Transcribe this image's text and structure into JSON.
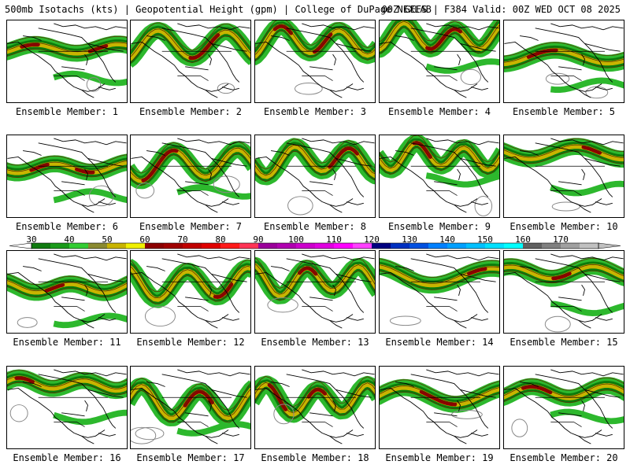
{
  "header": {
    "left": "500mb Isotachs (kts) | Geopotential Height (gpm) | College of DuPage NEXLAB",
    "right": "00Z GEFS | F384 Valid: 00Z WED OCT 08 2025"
  },
  "colorbar": {
    "labels": [
      "30",
      "40",
      "50",
      "60",
      "70",
      "80",
      "90",
      "100",
      "110",
      "120",
      "130",
      "140",
      "150",
      "160",
      "170"
    ],
    "colors": [
      "#0f7a0f",
      "#1a9a1a",
      "#33cc33",
      "#8a8a30",
      "#c8b400",
      "#f0f000",
      "#8b0000",
      "#a00000",
      "#c00000",
      "#e00000",
      "#ff1a1a",
      "#ff3355",
      "#9a009a",
      "#b000b0",
      "#cc00cc",
      "#e000e0",
      "#ff00ff",
      "#ff40ff",
      "#000080",
      "#0030c0",
      "#0050e0",
      "#0080ff",
      "#00a0ff",
      "#00c0ff",
      "#00e0ff",
      "#00ffff",
      "#606060",
      "#808080",
      "#a0a0a0",
      "#c0c0c0"
    ]
  },
  "members": [
    {
      "label": "Ensemble Member: 1"
    },
    {
      "label": "Ensemble Member: 2"
    },
    {
      "label": "Ensemble Member: 3"
    },
    {
      "label": "Ensemble Member: 4"
    },
    {
      "label": "Ensemble Member: 5"
    },
    {
      "label": "Ensemble Member: 6"
    },
    {
      "label": "Ensemble Member: 7"
    },
    {
      "label": "Ensemble Member: 8"
    },
    {
      "label": "Ensemble Member: 9"
    },
    {
      "label": "Ensemble Member: 10"
    },
    {
      "label": "Ensemble Member: 11"
    },
    {
      "label": "Ensemble Member: 12"
    },
    {
      "label": "Ensemble Member: 13"
    },
    {
      "label": "Ensemble Member: 14"
    },
    {
      "label": "Ensemble Member: 15"
    },
    {
      "label": "Ensemble Member: 16"
    },
    {
      "label": "Ensemble Member: 17"
    },
    {
      "label": "Ensemble Member: 18"
    },
    {
      "label": "Ensemble Member: 19"
    },
    {
      "label": "Ensemble Member: 20"
    }
  ],
  "colors": {
    "jet_outer": "#2db82d",
    "jet_mid": "#0c7a0c",
    "jet_core": "#c8b400",
    "jet_max": "#8b0000",
    "height_contour": "#888888",
    "coastline": "#000000"
  }
}
